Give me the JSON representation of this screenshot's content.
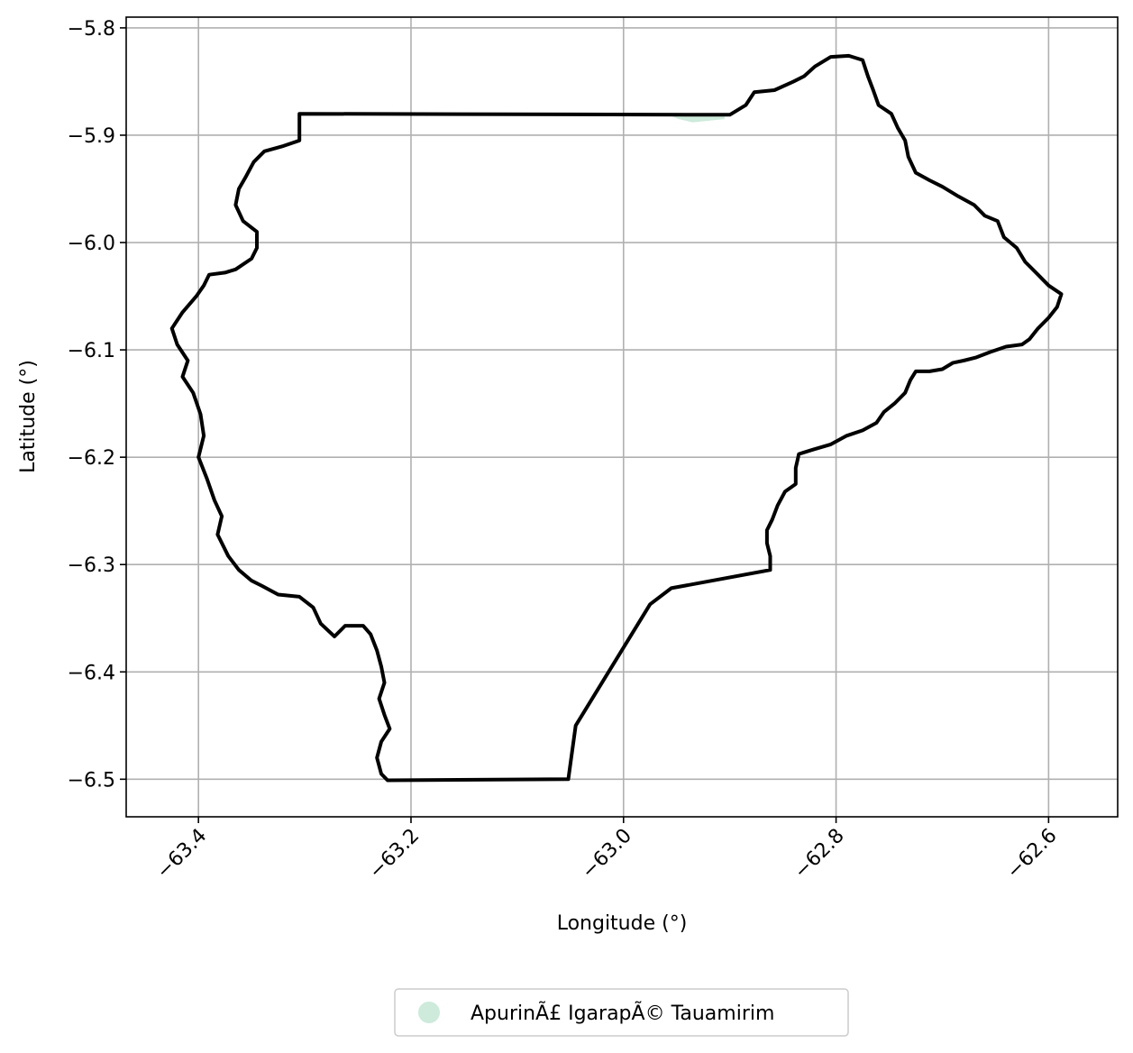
{
  "chart_data": {
    "type": "map",
    "title": "",
    "xlabel": "Longitude (°)",
    "ylabel": "Latitude (°)",
    "xlim": [
      -63.468,
      -62.535
    ],
    "ylim": [
      -6.535,
      -5.79
    ],
    "x_ticks": [
      -63.4,
      -63.2,
      -63.0,
      -62.8,
      -62.6
    ],
    "x_tick_labels": [
      "−63.4",
      "−63.2",
      "−63.0",
      "−62.8",
      "−62.6"
    ],
    "y_ticks": [
      -5.8,
      -5.9,
      -6.0,
      -6.1,
      -6.2,
      -6.3,
      -6.4,
      -6.5
    ],
    "y_tick_labels": [
      "−5.8",
      "−5.9",
      "−6.0",
      "−6.1",
      "−6.2",
      "−6.3",
      "−6.4",
      "−6.5"
    ],
    "grid": true,
    "legend": {
      "placement": "bottom-center",
      "entries": [
        {
          "label": "ApurinÃ£ IgarapÃ© Tauamirim",
          "color": "#cdeadb"
        }
      ]
    },
    "boundary": {
      "color": "#000000",
      "lon_lat": [
        [
          -63.305,
          -5.88
        ],
        [
          -62.9,
          -5.881
        ],
        [
          -62.885,
          -5.872
        ],
        [
          -62.877,
          -5.86
        ],
        [
          -62.858,
          -5.858
        ],
        [
          -62.84,
          -5.85
        ],
        [
          -62.83,
          -5.845
        ],
        [
          -62.82,
          -5.836
        ],
        [
          -62.805,
          -5.827
        ],
        [
          -62.788,
          -5.826
        ],
        [
          -62.775,
          -5.83
        ],
        [
          -62.77,
          -5.845
        ],
        [
          -62.765,
          -5.858
        ],
        [
          -62.76,
          -5.872
        ],
        [
          -62.748,
          -5.88
        ],
        [
          -62.742,
          -5.893
        ],
        [
          -62.735,
          -5.905
        ],
        [
          -62.732,
          -5.92
        ],
        [
          -62.725,
          -5.935
        ],
        [
          -62.712,
          -5.942
        ],
        [
          -62.7,
          -5.948
        ],
        [
          -62.685,
          -5.957
        ],
        [
          -62.67,
          -5.965
        ],
        [
          -62.66,
          -5.975
        ],
        [
          -62.648,
          -5.98
        ],
        [
          -62.642,
          -5.995
        ],
        [
          -62.63,
          -6.005
        ],
        [
          -62.622,
          -6.018
        ],
        [
          -62.61,
          -6.03
        ],
        [
          -62.6,
          -6.04
        ],
        [
          -62.588,
          -6.048
        ],
        [
          -62.592,
          -6.06
        ],
        [
          -62.6,
          -6.07
        ],
        [
          -62.61,
          -6.08
        ],
        [
          -62.618,
          -6.09
        ],
        [
          -62.625,
          -6.095
        ],
        [
          -62.64,
          -6.097
        ],
        [
          -62.655,
          -6.102
        ],
        [
          -62.668,
          -6.107
        ],
        [
          -62.68,
          -6.11
        ],
        [
          -62.69,
          -6.112
        ],
        [
          -62.7,
          -6.118
        ],
        [
          -62.712,
          -6.12
        ],
        [
          -62.725,
          -6.12
        ],
        [
          -62.73,
          -6.128
        ],
        [
          -62.735,
          -6.14
        ],
        [
          -62.745,
          -6.15
        ],
        [
          -62.755,
          -6.158
        ],
        [
          -62.762,
          -6.168
        ],
        [
          -62.775,
          -6.175
        ],
        [
          -62.79,
          -6.18
        ],
        [
          -62.805,
          -6.188
        ],
        [
          -62.822,
          -6.193
        ],
        [
          -62.835,
          -6.197
        ],
        [
          -62.838,
          -6.21
        ],
        [
          -62.838,
          -6.225
        ],
        [
          -62.848,
          -6.232
        ],
        [
          -62.855,
          -6.245
        ],
        [
          -62.86,
          -6.258
        ],
        [
          -62.865,
          -6.268
        ],
        [
          -62.865,
          -6.28
        ],
        [
          -62.862,
          -6.292
        ],
        [
          -62.862,
          -6.305
        ],
        [
          -62.955,
          -6.322
        ],
        [
          -62.975,
          -6.337
        ],
        [
          -63.045,
          -6.45
        ],
        [
          -63.052,
          -6.5
        ],
        [
          -63.222,
          -6.501
        ],
        [
          -63.228,
          -6.495
        ],
        [
          -63.232,
          -6.48
        ],
        [
          -63.228,
          -6.465
        ],
        [
          -63.22,
          -6.453
        ],
        [
          -63.225,
          -6.44
        ],
        [
          -63.23,
          -6.425
        ],
        [
          -63.225,
          -6.41
        ],
        [
          -63.228,
          -6.395
        ],
        [
          -63.232,
          -6.38
        ],
        [
          -63.238,
          -6.365
        ],
        [
          -63.245,
          -6.357
        ],
        [
          -63.262,
          -6.357
        ],
        [
          -63.272,
          -6.367
        ],
        [
          -63.285,
          -6.355
        ],
        [
          -63.292,
          -6.34
        ],
        [
          -63.305,
          -6.33
        ],
        [
          -63.325,
          -6.328
        ],
        [
          -63.34,
          -6.32
        ],
        [
          -63.35,
          -6.315
        ],
        [
          -63.362,
          -6.305
        ],
        [
          -63.372,
          -6.292
        ],
        [
          -63.382,
          -6.272
        ],
        [
          -63.378,
          -6.255
        ],
        [
          -63.385,
          -6.24
        ],
        [
          -63.392,
          -6.22
        ],
        [
          -63.4,
          -6.2
        ],
        [
          -63.395,
          -6.18
        ],
        [
          -63.398,
          -6.16
        ],
        [
          -63.405,
          -6.14
        ],
        [
          -63.415,
          -6.125
        ],
        [
          -63.41,
          -6.11
        ],
        [
          -63.42,
          -6.095
        ],
        [
          -63.425,
          -6.08
        ],
        [
          -63.415,
          -6.065
        ],
        [
          -63.402,
          -6.05
        ],
        [
          -63.395,
          -6.04
        ],
        [
          -63.39,
          -6.03
        ],
        [
          -63.375,
          -6.028
        ],
        [
          -63.365,
          -6.025
        ],
        [
          -63.35,
          -6.015
        ],
        [
          -63.345,
          -6.005
        ],
        [
          -63.345,
          -5.99
        ],
        [
          -63.358,
          -5.98
        ],
        [
          -63.365,
          -5.965
        ],
        [
          -63.362,
          -5.95
        ],
        [
          -63.355,
          -5.938
        ],
        [
          -63.348,
          -5.925
        ],
        [
          -63.338,
          -5.915
        ],
        [
          -63.32,
          -5.91
        ],
        [
          -63.305,
          -5.905
        ],
        [
          -63.305,
          -5.88
        ]
      ]
    },
    "territory": {
      "label": "ApurinÃ£ IgarapÃ© Tauamirim",
      "color": "#cdeadb",
      "lon_lat": [
        [
          -62.96,
          -5.88
        ],
        [
          -62.948,
          -5.885
        ],
        [
          -62.935,
          -5.888
        ],
        [
          -62.925,
          -5.887
        ],
        [
          -62.905,
          -5.885
        ],
        [
          -62.905,
          -5.88
        ]
      ]
    }
  }
}
